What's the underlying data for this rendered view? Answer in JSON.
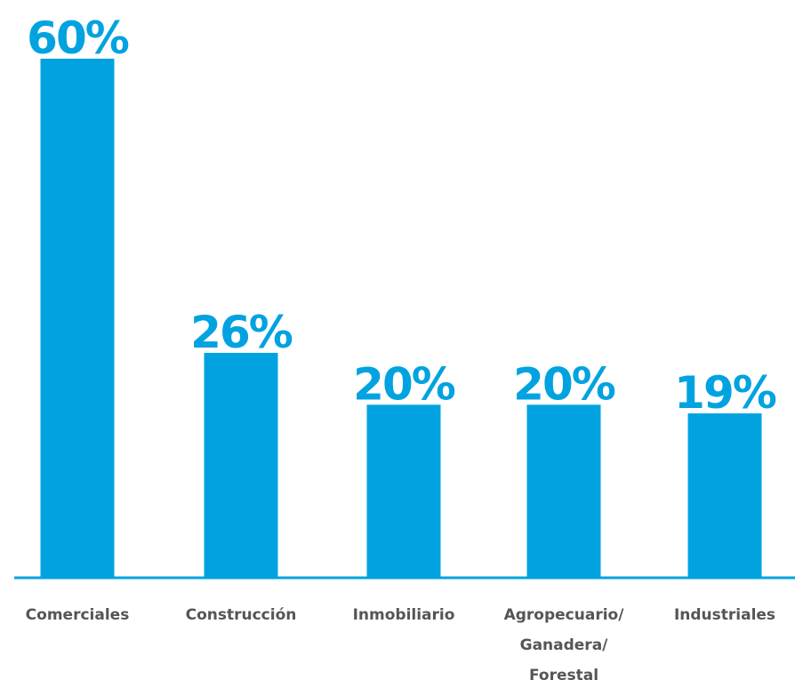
{
  "chart_data": {
    "type": "bar",
    "categories": [
      [
        "Comerciales"
      ],
      [
        "Construcción"
      ],
      [
        "Inmobiliario"
      ],
      [
        "Agropecuario/",
        "Ganadera/",
        "Forestal"
      ],
      [
        "Industriales"
      ]
    ],
    "values": [
      60,
      26,
      20,
      20,
      19
    ],
    "value_labels": [
      "60%",
      "26%",
      "20%",
      "20%",
      "19%"
    ],
    "unit": "%",
    "ylim": [
      0,
      60
    ],
    "grid": false,
    "legend": "none",
    "title": "",
    "xlabel": "",
    "ylabel": ""
  },
  "colors": {
    "bar": "#00a3e0",
    "label": "#555555",
    "background": "#ffffff"
  }
}
